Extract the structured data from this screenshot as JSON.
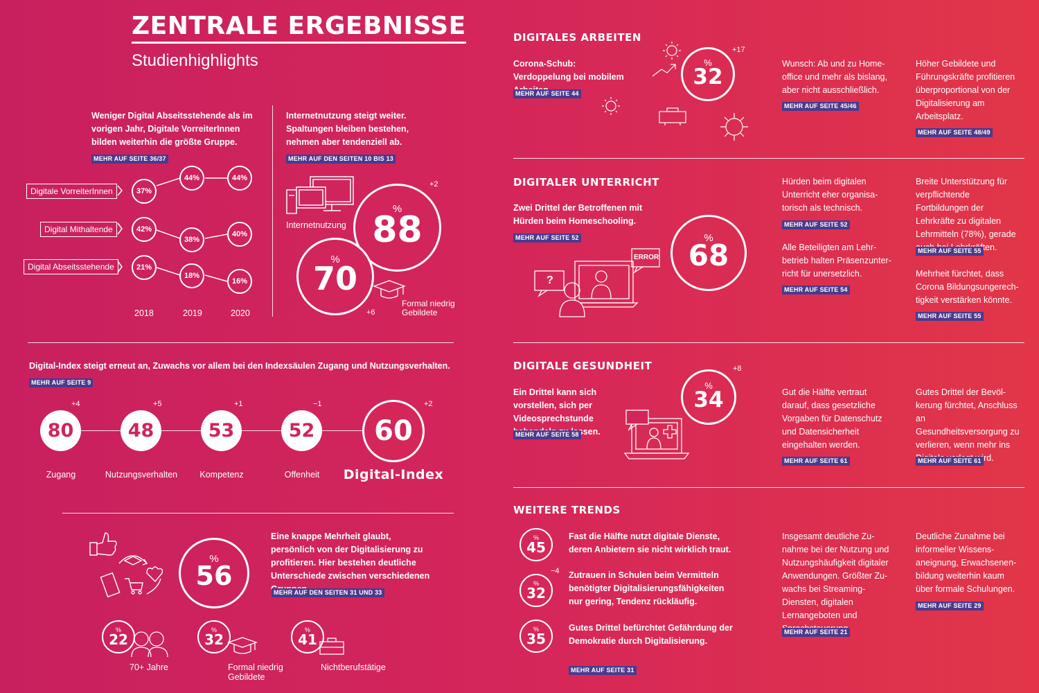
{
  "header": {
    "title": "ZENTRALE ERGEBNISSE",
    "subtitle": "Studienhighlights"
  },
  "groups": {
    "text": "Weniger Digital Abseitsstehende als im vorigen Jahr, Digitale VorreiterInnen bilden weiterhin die größte Gruppe.",
    "badge": "MEHR AUF SEITE 36/37",
    "rows": [
      {
        "label": "Digitale VorreiterInnen",
        "values": [
          "37%",
          "44%",
          "44%"
        ]
      },
      {
        "label": "Digital Mithaltende",
        "values": [
          "42%",
          "38%",
          "40%"
        ]
      },
      {
        "label": "Digital Abseitsstehende",
        "values": [
          "21%",
          "18%",
          "16%"
        ]
      }
    ],
    "years": [
      "2018",
      "2019",
      "2020"
    ]
  },
  "internet": {
    "text": "Internetnutzung steigt weiter. Spaltungen bleiben bestehen, nehmen aber tendenziell ab.",
    "badge": "MEHR AUF DEN SEITEN 10 BIS 13",
    "label_usage": "Internetnutzung",
    "big": {
      "pct": "%",
      "value": "88",
      "delta": "+2"
    },
    "small": {
      "pct": "%",
      "value": "70",
      "delta": "+6",
      "label": "Formal niedrig Gebildete"
    }
  },
  "index": {
    "text": "Digital-Index steigt erneut an, Zuwachs vor allem bei den Indexsäulen Zugang und Nutzungsverhalten.",
    "badge": "MEHR AUF SEITE 9",
    "items": [
      {
        "value": "80",
        "delta": "+4",
        "label": "Zugang"
      },
      {
        "value": "48",
        "delta": "+5",
        "label": "Nutzungsverhalten"
      },
      {
        "value": "53",
        "delta": "+1",
        "label": "Kompetenz"
      },
      {
        "value": "52",
        "delta": "−1",
        "label": "Offenheit"
      },
      {
        "value": "60",
        "delta": "+2",
        "label": "Digital-Index"
      }
    ]
  },
  "benefit": {
    "text": "Eine knappe Mehrheit glaubt, persönlich von der Digitalisierung zu profitieren. Hier bestehen deutliche Unterschiede zwischen verschiedenen Gruppen.",
    "badge": "MEHR AUF DEN SEITEN 31 UND 33",
    "big": {
      "pct": "%",
      "value": "56"
    },
    "groups": [
      {
        "pct": "%",
        "value": "22",
        "label": "70+ Jahre"
      },
      {
        "pct": "%",
        "value": "32",
        "label": "Formal niedrig Gebildete"
      },
      {
        "pct": "%",
        "value": "41",
        "label": "Nichtberufstätige"
      }
    ]
  },
  "arbeiten": {
    "title": "DIGITALES ARBEITEN",
    "lead": "Corona-Schub: Verdoppelung bei mobilem Arbeiten.",
    "lead_badge": "MEHR AUF SEITE 44",
    "ring": {
      "pct": "%",
      "value": "32",
      "delta": "+17"
    },
    "col1": "Wunsch: Ab und zu Home-office und mehr als bislang, aber nicht ausschließlich.",
    "col1_badge": "MEHR AUF SEITE 45/46",
    "col2": "Höher Gebildete und Führungskräfte profitieren überproportional von der Digitalisierung am Arbeitsplatz.",
    "col2_badge": "MEHR AUF SEITE 48/49"
  },
  "unterricht": {
    "title": "DIGITALER UNTERRICHT",
    "lead": "Zwei Drittel der Betroffenen mit Hürden beim Homeschooling.",
    "lead_badge": "MEHR AUF SEITE 52",
    "ring": {
      "pct": "%",
      "value": "68"
    },
    "error": "ERROR",
    "q": "?",
    "c1a": "Hürden beim digitalen Unterricht eher organisa-torisch als technisch.",
    "c1a_badge": "MEHR AUF SEITE 52",
    "c1b": "Alle Beteiligten am Lehr-betrieb halten Präsenzunter-richt für unersetzlich.",
    "c1b_badge": "MEHR AUF SEITE 54",
    "c2a": "Breite Unterstützung für verpflichtende Fortbildungen der Lehrkräfte zu digitalen Lehrmitteln (78%), gerade auch bei Lehrkräften.",
    "c2a_badge": "MEHR AUF SEITE 55",
    "c2b": "Mehrheit fürchtet, dass Corona Bildungsungerech-tigkeit verstärken könnte.",
    "c2b_badge": "MEHR AUF SEITE 55"
  },
  "gesundheit": {
    "title": "DIGITALE GESUNDHEIT",
    "lead": "Ein Drittel kann sich vorstellen, sich per Videosprechstunde behandeln zu lassen.",
    "lead_badge": "MEHR AUF SEITE 58",
    "ring": {
      "pct": "%",
      "value": "34",
      "delta": "+8"
    },
    "col1": "Gut die Hälfte vertraut darauf, dass gesetzliche Vorgaben für Datenschutz und Datensicherheit eingehalten werden.",
    "col1_badge": "MEHR AUF SEITE 61",
    "col2": "Gutes Drittel der Bevöl-kerung fürchtet, Anschluss an Gesundheitsversorgung zu verlieren, wenn mehr ins Digitale verlegt wird.",
    "col2_badge": "MEHR AUF SEITE 61"
  },
  "trends": {
    "title": "WEITERE TRENDS",
    "items": [
      {
        "pct": "%",
        "value": "45",
        "delta": "",
        "text": "Fast die Hälfte nutzt digitale Dienste, deren Anbietern sie nicht wirklich traut."
      },
      {
        "pct": "%",
        "value": "32",
        "delta": "−4",
        "text": "Zutrauen in Schulen beim Vermitteln benötigter Digitalisierungsfähigkeiten nur gering, Tendenz rückläufig."
      },
      {
        "pct": "%",
        "value": "35",
        "delta": "",
        "text": "Gutes Drittel befürchtet Gefährdung der Demokratie durch Digitalisierung."
      }
    ],
    "badge": "MEHR AUF SEITE 31",
    "col1": "Insgesamt deutliche Zu-nahme bei der Nutzung und Nutzungshäufigkeit digitaler Anwendungen. Größter Zu-wachs bei Streaming-Diensten, digitalen Lernangeboten und Sprachsteuerung.",
    "col1_badge": "MEHR AUF SEITE 21",
    "col2": "Deutliche Zunahme bei informeller Wissens-aneignung, Erwachsenen-bildung weiterhin kaum über formale Schulungen.",
    "col2_badge": "MEHR AUF SEITE 29"
  }
}
